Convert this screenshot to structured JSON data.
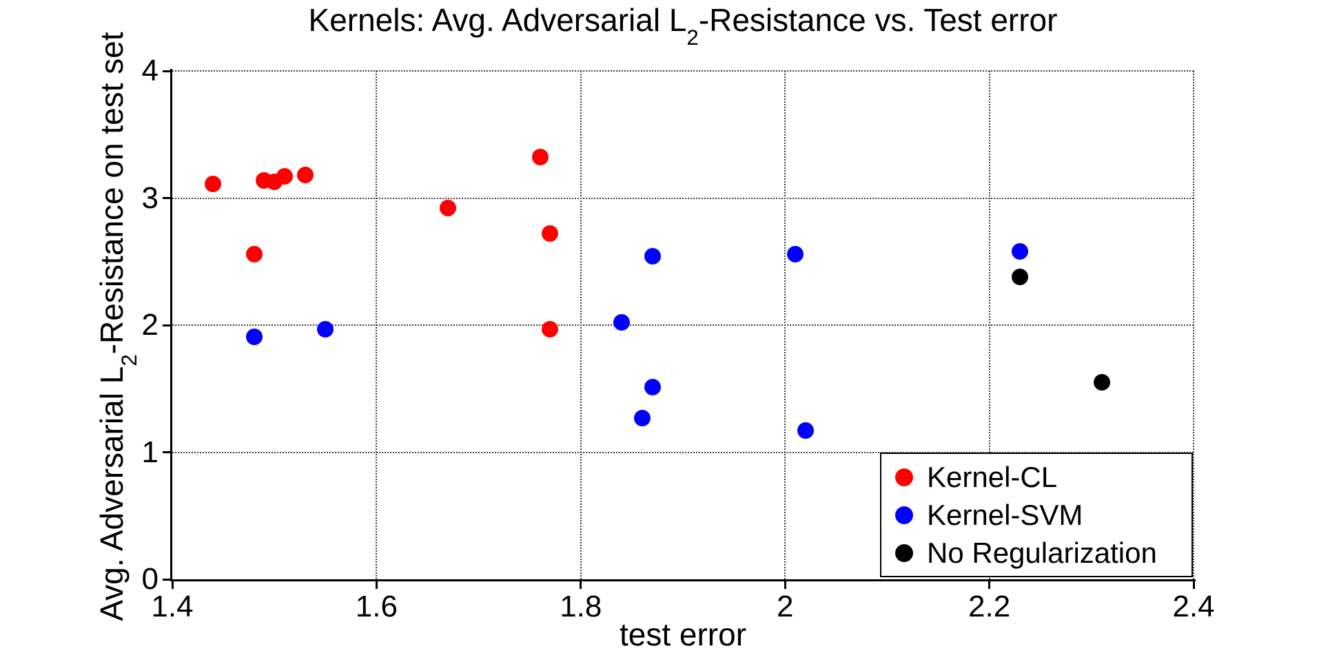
{
  "chart_data": {
    "type": "scatter",
    "title": "Kernels: Avg. Adversarial L2-Resistance vs. Test error",
    "title_parts": {
      "pre": "Kernels: Avg. Adversarial L",
      "sub": "2",
      "post": "-Resistance vs. Test error"
    },
    "xlabel": "test error",
    "ylabel": "Avg. Adversarial L2-Resistance on test set",
    "ylabel_parts": {
      "pre": "Avg. Adversarial L",
      "sub": "2",
      "post": "-Resistance on test set"
    },
    "xlim": [
      1.4,
      2.4
    ],
    "ylim": [
      0,
      4
    ],
    "xticks": {
      "values": [
        1.4,
        1.6,
        1.8,
        2.0,
        2.2,
        2.4
      ],
      "labels": [
        "1.4",
        "1.6",
        "1.8",
        "2",
        "2.2",
        "2.4"
      ]
    },
    "yticks": {
      "values": [
        0,
        1,
        2,
        3,
        4
      ],
      "labels": [
        "0",
        "1",
        "2",
        "3",
        "4"
      ]
    },
    "grid": "dotted",
    "legend": {
      "position": "lower right",
      "entries": [
        {
          "label": "Kernel-CL",
          "color": "#ff0000"
        },
        {
          "label": "Kernel-SVM",
          "color": "#0000ff"
        },
        {
          "label": "No Regularization",
          "color": "#000000"
        }
      ]
    },
    "series": [
      {
        "name": "Kernel-CL",
        "color": "#ff0000",
        "points": [
          [
            1.44,
            3.11
          ],
          [
            1.48,
            2.56
          ],
          [
            1.49,
            3.14
          ],
          [
            1.5,
            3.13
          ],
          [
            1.51,
            3.17
          ],
          [
            1.53,
            3.18
          ],
          [
            1.67,
            2.92
          ],
          [
            1.76,
            3.32
          ],
          [
            1.77,
            2.72
          ],
          [
            1.77,
            1.97
          ]
        ]
      },
      {
        "name": "Kernel-SVM",
        "color": "#0000ff",
        "points": [
          [
            1.48,
            1.91
          ],
          [
            1.55,
            1.97
          ],
          [
            1.84,
            2.02
          ],
          [
            1.86,
            1.27
          ],
          [
            1.87,
            1.51
          ],
          [
            1.87,
            2.54
          ],
          [
            2.01,
            2.56
          ],
          [
            2.02,
            1.17
          ],
          [
            2.23,
            2.58
          ]
        ]
      },
      {
        "name": "No Regularization",
        "color": "#000000",
        "points": [
          [
            2.23,
            2.38
          ],
          [
            2.31,
            1.55
          ]
        ]
      }
    ]
  },
  "colors": {
    "background": "#ffffff",
    "axis": "#000000",
    "grid": "#3a3a3a"
  }
}
